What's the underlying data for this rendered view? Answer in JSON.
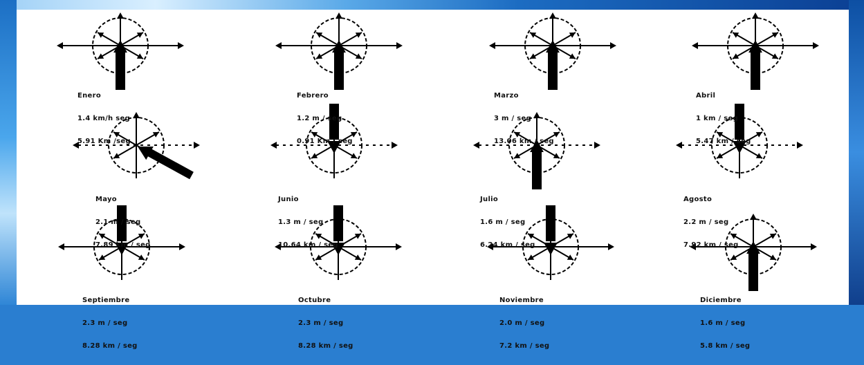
{
  "roses": [
    {
      "month": "Enero",
      "speed": "1.4 km/h seg",
      "speed2": "5.91 Km /seg",
      "arrow": "S"
    },
    {
      "month": "Febrero",
      "speed": "1.2 m / seg",
      "speed2": "0.91 Km / seg",
      "arrow": "S"
    },
    {
      "month": "Marzo",
      "speed": "3 m / seg",
      "speed2": "13.06 km / seg",
      "arrow": "S"
    },
    {
      "month": "Abril",
      "speed": "1 km / seg",
      "speed2": "5.47 km / seg",
      "arrow": "S"
    },
    {
      "month": "Mayo",
      "speed": "2.1 m / seg",
      "speed2": "7.89 km / seg",
      "arrow": "SE"
    },
    {
      "month": "Junio",
      "speed": "1.3 m / seg",
      "speed2": "10.64 km / seg",
      "arrow": "N"
    },
    {
      "month": "Julio",
      "speed": "1.6 m / seg",
      "speed2": "6.24 km / seg",
      "arrow": "S"
    },
    {
      "month": "Agosto",
      "speed": "2.2 m / seg",
      "speed2": "7.92 km / seg",
      "arrow": "N"
    },
    {
      "month": "Septiembre",
      "speed": "2.3 m / seg",
      "speed2": "8.28 km / seg",
      "arrow": "N"
    },
    {
      "month": "Octubre",
      "speed": "2.3 m / seg",
      "speed2": "8.28 km / seg",
      "arrow": "N"
    },
    {
      "month": "Noviembre",
      "speed": "2.0 m / seg",
      "speed2": "7.2 km / seg",
      "arrow": "N"
    },
    {
      "month": "Diciembre",
      "speed": "1.6 m / seg",
      "speed2": "5.8 km / seg",
      "arrow": "S"
    }
  ]
}
